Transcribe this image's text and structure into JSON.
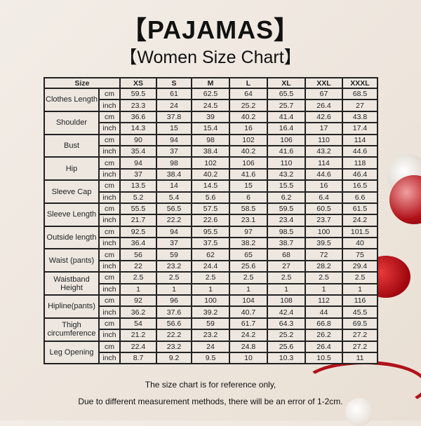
{
  "title": "【PAJAMAS】",
  "subtitle": "【Women Size Chart】",
  "table": {
    "size_header": "Size",
    "sizes": [
      "XS",
      "S",
      "M",
      "L",
      "XL",
      "XXL",
      "XXXL"
    ],
    "rows": [
      {
        "measure": "Clothes Length",
        "cm": [
          "59.5",
          "61",
          "62.5",
          "64",
          "65.5",
          "67",
          "68.5"
        ],
        "inch": [
          "23.3",
          "24",
          "24.5",
          "25.2",
          "25.7",
          "26.4",
          "27"
        ]
      },
      {
        "measure": "Shoulder",
        "cm": [
          "36.6",
          "37.8",
          "39",
          "40.2",
          "41.4",
          "42.6",
          "43.8"
        ],
        "inch": [
          "14.3",
          "15",
          "15.4",
          "16",
          "16.4",
          "17",
          "17.4"
        ]
      },
      {
        "measure": "Bust",
        "cm": [
          "90",
          "94",
          "98",
          "102",
          "106",
          "110",
          "114"
        ],
        "inch": [
          "35.4",
          "37",
          "38.4",
          "40.2",
          "41.6",
          "43.2",
          "44.6"
        ]
      },
      {
        "measure": "Hip",
        "cm": [
          "94",
          "98",
          "102",
          "106",
          "110",
          "114",
          "118"
        ],
        "inch": [
          "37",
          "38.4",
          "40.2",
          "41.6",
          "43.2",
          "44.6",
          "46.4"
        ]
      },
      {
        "measure": "Sleeve Cap",
        "cm": [
          "13.5",
          "14",
          "14.5",
          "15",
          "15.5",
          "16",
          "16.5"
        ],
        "inch": [
          "5.2",
          "5.4",
          "5.6",
          "6",
          "6.2",
          "6.4",
          "6.6"
        ]
      },
      {
        "measure": "Sleeve Length",
        "cm": [
          "55.5",
          "56.5",
          "57.5",
          "58.5",
          "59.5",
          "60.5",
          "61.5"
        ],
        "inch": [
          "21.7",
          "22.2",
          "22.6",
          "23.1",
          "23.4",
          "23.7",
          "24.2"
        ]
      },
      {
        "measure": "Outside length",
        "cm": [
          "92.5",
          "94",
          "95.5",
          "97",
          "98.5",
          "100",
          "101.5"
        ],
        "inch": [
          "36.4",
          "37",
          "37.5",
          "38.2",
          "38.7",
          "39.5",
          "40"
        ]
      },
      {
        "measure": "Waist (pants)",
        "cm": [
          "56",
          "59",
          "62",
          "65",
          "68",
          "72",
          "75"
        ],
        "inch": [
          "22",
          "23.2",
          "24.4",
          "25.6",
          "27",
          "28.2",
          "29.4"
        ]
      },
      {
        "measure": "Waistband Height",
        "cm": [
          "2.5",
          "2.5",
          "2.5",
          "2.5",
          "2.5",
          "2.5",
          "2.5"
        ],
        "inch": [
          "1",
          "1",
          "1",
          "1",
          "1",
          "1",
          "1"
        ]
      },
      {
        "measure": "Hipline(pants)",
        "cm": [
          "92",
          "96",
          "100",
          "104",
          "108",
          "112",
          "116"
        ],
        "inch": [
          "36.2",
          "37.6",
          "39.2",
          "40.7",
          "42.4",
          "44",
          "45.5"
        ]
      },
      {
        "measure": "Thigh circumference",
        "cm": [
          "54",
          "56.6",
          "59",
          "61.7",
          "64.3",
          "66.8",
          "69.5"
        ],
        "inch": [
          "21.2",
          "22.2",
          "23.2",
          "24.2",
          "25.2",
          "26.2",
          "27.2"
        ]
      },
      {
        "measure": "Leg Opening",
        "cm": [
          "22.4",
          "23.2",
          "24",
          "24.8",
          "25.6",
          "26.4",
          "27.2"
        ],
        "inch": [
          "8.7",
          "9.2",
          "9.5",
          "10",
          "10.3",
          "10.5",
          "11"
        ]
      }
    ],
    "unit_cm": "cm",
    "unit_inch": "inch"
  },
  "notes": [
    "The size chart is for reference only,",
    "Due to different measurement methods, there will be an error of 1-2cm."
  ]
}
